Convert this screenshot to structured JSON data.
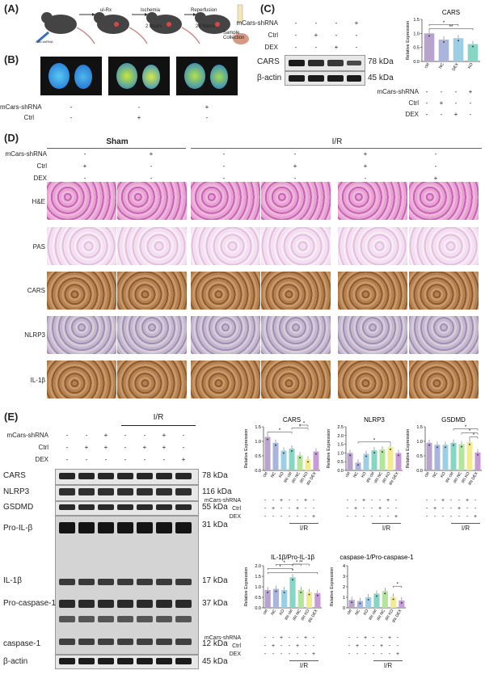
{
  "panel_labels": {
    "a": "(A)",
    "b": "(B)",
    "c": "(C)",
    "d": "(D)",
    "e": "(E)"
  },
  "panelA": {
    "steps": [
      "ul-Rx",
      "Ischemia",
      "Reperfusion"
    ],
    "times": [
      "2 hours",
      "24 hours"
    ],
    "collection": "Sample\nCollection",
    "tiny_label": "AAV-shRNA"
  },
  "panelB": {
    "rows": [
      {
        "label": "mCars-shRNA",
        "signs": [
          "-",
          "-",
          "+"
        ]
      },
      {
        "label": "Ctrl",
        "signs": [
          "-",
          "+",
          "-"
        ]
      }
    ]
  },
  "panelC": {
    "rows": [
      {
        "label": "mCars-shRNA",
        "signs": [
          "-",
          "-",
          "-",
          "+"
        ]
      },
      {
        "label": "Ctrl",
        "signs": [
          "-",
          "+",
          "-",
          "-"
        ]
      },
      {
        "label": "DEX",
        "signs": [
          "-",
          "-",
          "+",
          "-"
        ]
      }
    ],
    "bands": [
      {
        "label": "CARS",
        "kda": "78 kDa"
      },
      {
        "label": "β-actin",
        "kda": "45 kDa"
      }
    ],
    "chart_title": "CARS",
    "xrows": [
      {
        "label": "mCars-shRNA",
        "signs": [
          "-",
          "-",
          "-",
          "+"
        ]
      },
      {
        "label": "Ctrl",
        "signs": [
          "-",
          "+",
          "-",
          "-"
        ]
      },
      {
        "label": "DEX",
        "signs": [
          "-",
          "-",
          "+",
          "-"
        ]
      }
    ]
  },
  "panelD": {
    "groups": [
      "Sham",
      "I/R"
    ],
    "rows": [
      {
        "label": "mCars-shRNA",
        "signs": [
          "-",
          "+",
          "-",
          "-",
          "+",
          "-"
        ]
      },
      {
        "label": "Ctrl",
        "signs": [
          "+",
          "-",
          "-",
          "+",
          "+",
          "-"
        ]
      },
      {
        "label": "DEX",
        "signs": [
          "-",
          "-",
          "-",
          "-",
          "-",
          "+"
        ]
      }
    ],
    "stains": [
      "H&E",
      "PAS",
      "CARS",
      "NLRP3",
      "IL-1β"
    ]
  },
  "panelE": {
    "group": "I/R",
    "rows": [
      {
        "label": "mCars-shRNA",
        "signs": [
          "-",
          "-",
          "+",
          "-",
          "-",
          "+",
          "-"
        ]
      },
      {
        "label": "Ctrl",
        "signs": [
          "-",
          "+",
          "+",
          "-",
          "+",
          "+",
          "-"
        ]
      },
      {
        "label": "DEX",
        "signs": [
          "-",
          "-",
          "-",
          "-",
          "-",
          "-",
          "+"
        ]
      }
    ],
    "blots": [
      {
        "label": "CARS",
        "kda": "78 kDa"
      },
      {
        "label": "NLRP3",
        "kda": "116 kDa"
      },
      {
        "label": "GSDMD",
        "kda": "55 kDa"
      },
      {
        "label": "Pro-IL-β",
        "kda": "31 kDa"
      },
      {
        "label": "IL-1β",
        "kda": "17 kDa"
      },
      {
        "label": "Pro-caspase-1",
        "kda": "37 kDa"
      },
      {
        "label": "caspase-1",
        "kda": "12 kDa"
      },
      {
        "label": "β-actin",
        "kda": "45 kDa"
      }
    ],
    "chart_rows": [
      {
        "label": "mCars-shRNA",
        "signs": [
          "-",
          "-",
          "+",
          "-",
          "-",
          "+",
          "-"
        ]
      },
      {
        "label": "Ctrl",
        "signs": [
          "-",
          "+",
          "-",
          "-",
          "+",
          "-",
          "-"
        ]
      },
      {
        "label": "DEX",
        "signs": [
          "-",
          "-",
          "-",
          "-",
          "-",
          "-",
          "+"
        ]
      }
    ],
    "ir_label": "I/R"
  },
  "chart_data": [
    {
      "id": "c_cars",
      "type": "bar",
      "title": "CARS",
      "ylabel": "Relative Expression",
      "ylim": [
        0,
        1.5
      ],
      "yticks": [
        "0.0",
        "0.5",
        "1.0",
        "1.5"
      ],
      "categories": [
        "ctrl",
        "NC",
        "DEX",
        "KO"
      ],
      "values": [
        1.0,
        0.78,
        0.83,
        0.62
      ],
      "colors": [
        "#b7a3cc",
        "#a9b5dc",
        "#9ccfe4",
        "#86d6c4"
      ],
      "sig": [
        {
          "a": 0,
          "b": 3,
          "text": "**"
        },
        {
          "a": 0,
          "b": 2,
          "text": "*"
        }
      ]
    },
    {
      "id": "e_cars",
      "type": "bar",
      "title": "CARS",
      "ylabel": "Relative Expression",
      "ylim": [
        0,
        1.5
      ],
      "yticks": [
        "0.0",
        "0.5",
        "1.0",
        "1.5"
      ],
      "categories": [
        "ctrl",
        "NC",
        "KO",
        "IRI ctrl",
        "IRI NC",
        "IRI KO",
        "IRI DEX"
      ],
      "values": [
        1.15,
        0.95,
        0.68,
        0.75,
        0.52,
        0.38,
        0.65
      ],
      "colors": [
        "#b7a3cc",
        "#a9b5dc",
        "#9ccfe4",
        "#86d6c4",
        "#b4e69a",
        "#f2ec8c",
        "#c89ad6"
      ],
      "sig": [
        {
          "a": 0,
          "b": 3,
          "text": "*"
        },
        {
          "a": 3,
          "b": 5,
          "text": "*"
        },
        {
          "a": 4,
          "b": 5,
          "text": "*"
        }
      ]
    },
    {
      "id": "e_nlrp3",
      "type": "bar",
      "title": "NLRP3",
      "ylabel": "Relative Expression",
      "ylim": [
        0,
        2.5
      ],
      "yticks": [
        "0.0",
        "0.5",
        "1.0",
        "1.5",
        "2.0",
        "2.5"
      ],
      "categories": [
        "ctrl",
        "NC",
        "KO",
        "IRI ctrl",
        "IRI NC",
        "IRI KO",
        "IRI DEX"
      ],
      "values": [
        1.0,
        0.45,
        0.95,
        1.15,
        1.2,
        1.35,
        1.0
      ],
      "colors": [
        "#b7a3cc",
        "#a9b5dc",
        "#9ccfe4",
        "#86d6c4",
        "#b4e69a",
        "#f2ec8c",
        "#c89ad6"
      ],
      "sig": [
        {
          "a": 1,
          "b": 5,
          "text": "*"
        }
      ]
    },
    {
      "id": "e_gsdmd",
      "type": "bar",
      "title": "GSDMD",
      "ylabel": "Relative Expression",
      "ylim": [
        0,
        1.5
      ],
      "yticks": [
        "0.0",
        "0.5",
        "1.0",
        "1.5"
      ],
      "categories": [
        "ctrl",
        "NC",
        "KO",
        "IRI ctrl",
        "IRI NC",
        "IRI KO",
        "IRI DEX"
      ],
      "values": [
        0.95,
        0.88,
        0.88,
        0.95,
        0.9,
        0.98,
        0.62
      ],
      "colors": [
        "#b7a3cc",
        "#a9b5dc",
        "#9ccfe4",
        "#86d6c4",
        "#b4e69a",
        "#f2ec8c",
        "#c89ad6"
      ],
      "sig": [
        {
          "a": 5,
          "b": 6,
          "text": "*"
        },
        {
          "a": 4,
          "b": 6,
          "text": "*"
        },
        {
          "a": 3,
          "b": 6,
          "text": "*"
        }
      ]
    },
    {
      "id": "e_il1b",
      "type": "bar",
      "title": "IL-1β/Pro-IL-1β",
      "ylabel": "Relative Expression",
      "ylim": [
        0,
        2.0
      ],
      "yticks": [
        "0.0",
        "0.5",
        "1.0",
        "1.5",
        "2.0"
      ],
      "categories": [
        "ctrl",
        "NC",
        "KO",
        "IRI ctrl",
        "IRI NC",
        "IRI KO",
        "IRI DEX"
      ],
      "values": [
        0.85,
        0.9,
        0.85,
        1.45,
        0.85,
        0.75,
        0.7
      ],
      "colors": [
        "#b7a3cc",
        "#a9b5dc",
        "#9ccfe4",
        "#86d6c4",
        "#b4e69a",
        "#f2ec8c",
        "#c89ad6"
      ],
      "sig": [
        {
          "a": 0,
          "b": 6,
          "text": "*"
        },
        {
          "a": 0,
          "b": 3,
          "text": "*"
        },
        {
          "a": 1,
          "b": 3,
          "text": "*"
        },
        {
          "a": 3,
          "b": 5,
          "text": "**"
        },
        {
          "a": 3,
          "b": 4,
          "text": "*"
        }
      ]
    },
    {
      "id": "e_casp",
      "type": "bar",
      "title": "caspase-1/Pro-caspase-1",
      "ylabel": "Relative Expression",
      "ylim": [
        0,
        4
      ],
      "yticks": [
        "0",
        "1",
        "2",
        "3",
        "4"
      ],
      "categories": [
        "ctrl",
        "NC",
        "KO",
        "IRI ctrl",
        "IRI NC",
        "IRI KO",
        "IRI DEX"
      ],
      "values": [
        0.75,
        0.65,
        1.0,
        1.35,
        1.6,
        1.05,
        0.7
      ],
      "colors": [
        "#b7a3cc",
        "#a9b5dc",
        "#9ccfe4",
        "#86d6c4",
        "#b4e69a",
        "#f2ec8c",
        "#c89ad6"
      ],
      "sig": [
        {
          "a": 5,
          "b": 6,
          "text": "*"
        }
      ]
    }
  ]
}
